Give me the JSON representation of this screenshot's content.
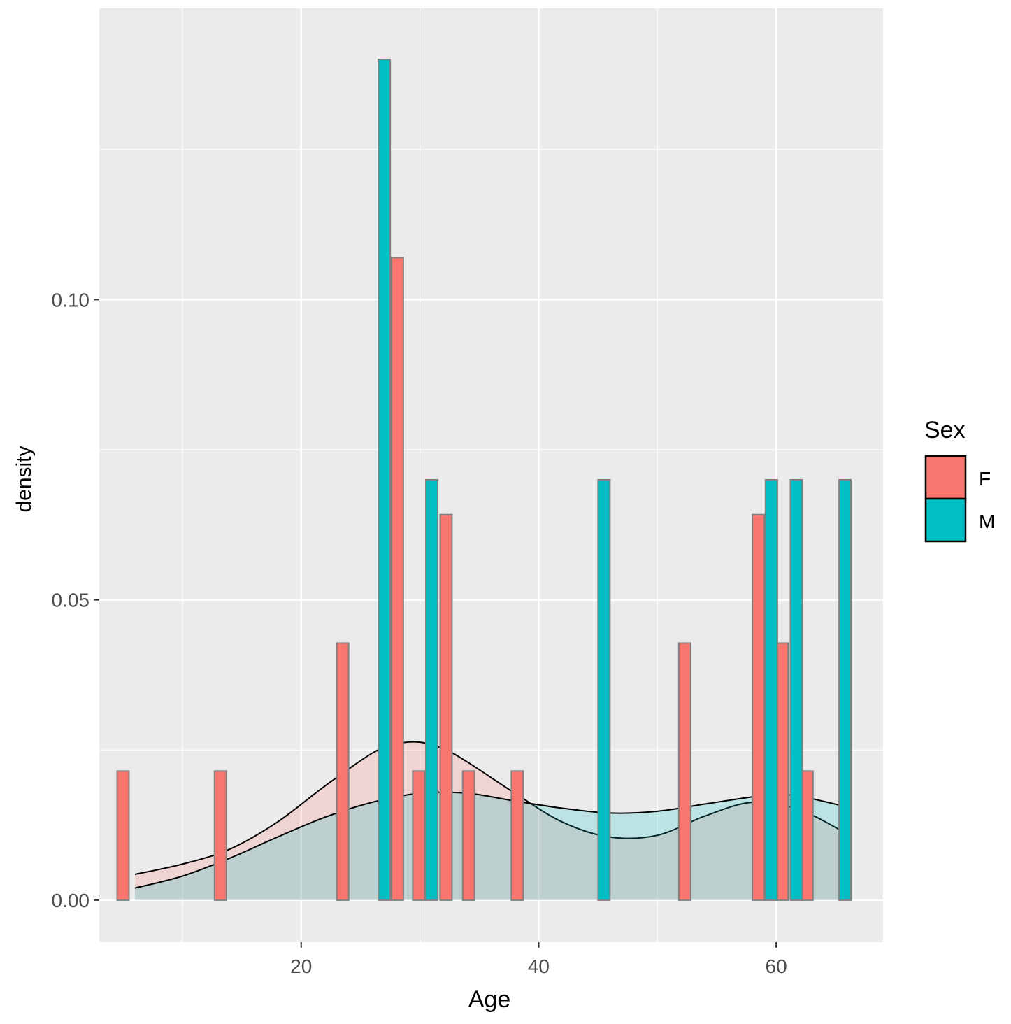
{
  "chart_data": {
    "type": "histogram_density",
    "xlabel": "Age",
    "ylabel": "density",
    "xlim": [
      3,
      69
    ],
    "ylim": [
      -0.007,
      0.1485
    ],
    "x_ticks": [
      {
        "value": 20,
        "label": "20"
      },
      {
        "value": 40,
        "label": "40"
      },
      {
        "value": 60,
        "label": "60"
      }
    ],
    "x_minor": [
      10,
      30,
      50
    ],
    "y_ticks": [
      {
        "value": 0.0,
        "label": "0.00"
      },
      {
        "value": 0.05,
        "label": "0.05"
      },
      {
        "value": 0.1,
        "label": "0.10"
      }
    ],
    "y_minor": [
      0.025,
      0.075,
      0.125
    ],
    "panel_background": "#EBEBEB",
    "grid": true,
    "bin_width": 1.0,
    "legend": {
      "title": "Sex",
      "position": "right",
      "entries": [
        {
          "label": "F",
          "color": "#F8766D"
        },
        {
          "label": "M",
          "color": "#00BFC4"
        }
      ]
    },
    "series": [
      {
        "name": "F",
        "color": "#F8766D",
        "bars": [
          {
            "x": 5.0,
            "density": 0.0215
          },
          {
            "x": 13.2,
            "density": 0.0215
          },
          {
            "x": 23.5,
            "density": 0.0428
          },
          {
            "x": 28.1,
            "density": 0.107
          },
          {
            "x": 29.9,
            "density": 0.0215
          },
          {
            "x": 32.2,
            "density": 0.0642
          },
          {
            "x": 34.1,
            "density": 0.0215
          },
          {
            "x": 38.2,
            "density": 0.0215
          },
          {
            "x": 52.3,
            "density": 0.0428
          },
          {
            "x": 58.5,
            "density": 0.0642
          },
          {
            "x": 60.5,
            "density": 0.0428
          },
          {
            "x": 62.6,
            "density": 0.0215
          }
        ],
        "density_curve": {
          "x": [
            6,
            10,
            14,
            18,
            22,
            26,
            28,
            30,
            32,
            34,
            38,
            42,
            46,
            50,
            54,
            58,
            62,
            66
          ],
          "y": [
            0.0043,
            0.006,
            0.0085,
            0.013,
            0.019,
            0.0245,
            0.026,
            0.0263,
            0.0252,
            0.023,
            0.0178,
            0.013,
            0.0105,
            0.0108,
            0.014,
            0.0163,
            0.015,
            0.011
          ]
        }
      },
      {
        "name": "M",
        "color": "#00BFC4",
        "bars": [
          {
            "x": 27.0,
            "density": 0.14
          },
          {
            "x": 31.0,
            "density": 0.07
          },
          {
            "x": 45.5,
            "density": 0.07
          },
          {
            "x": 59.6,
            "density": 0.07
          },
          {
            "x": 61.7,
            "density": 0.07
          },
          {
            "x": 65.8,
            "density": 0.07
          }
        ],
        "density_curve": {
          "x": [
            6,
            10,
            14,
            18,
            22,
            26,
            30,
            34,
            38,
            42,
            46,
            50,
            54,
            58,
            60,
            62,
            66
          ],
          "y": [
            0.002,
            0.004,
            0.007,
            0.0105,
            0.0138,
            0.0163,
            0.0178,
            0.0178,
            0.0165,
            0.0153,
            0.0145,
            0.0148,
            0.016,
            0.0172,
            0.0175,
            0.0173,
            0.0155
          ]
        }
      }
    ]
  }
}
